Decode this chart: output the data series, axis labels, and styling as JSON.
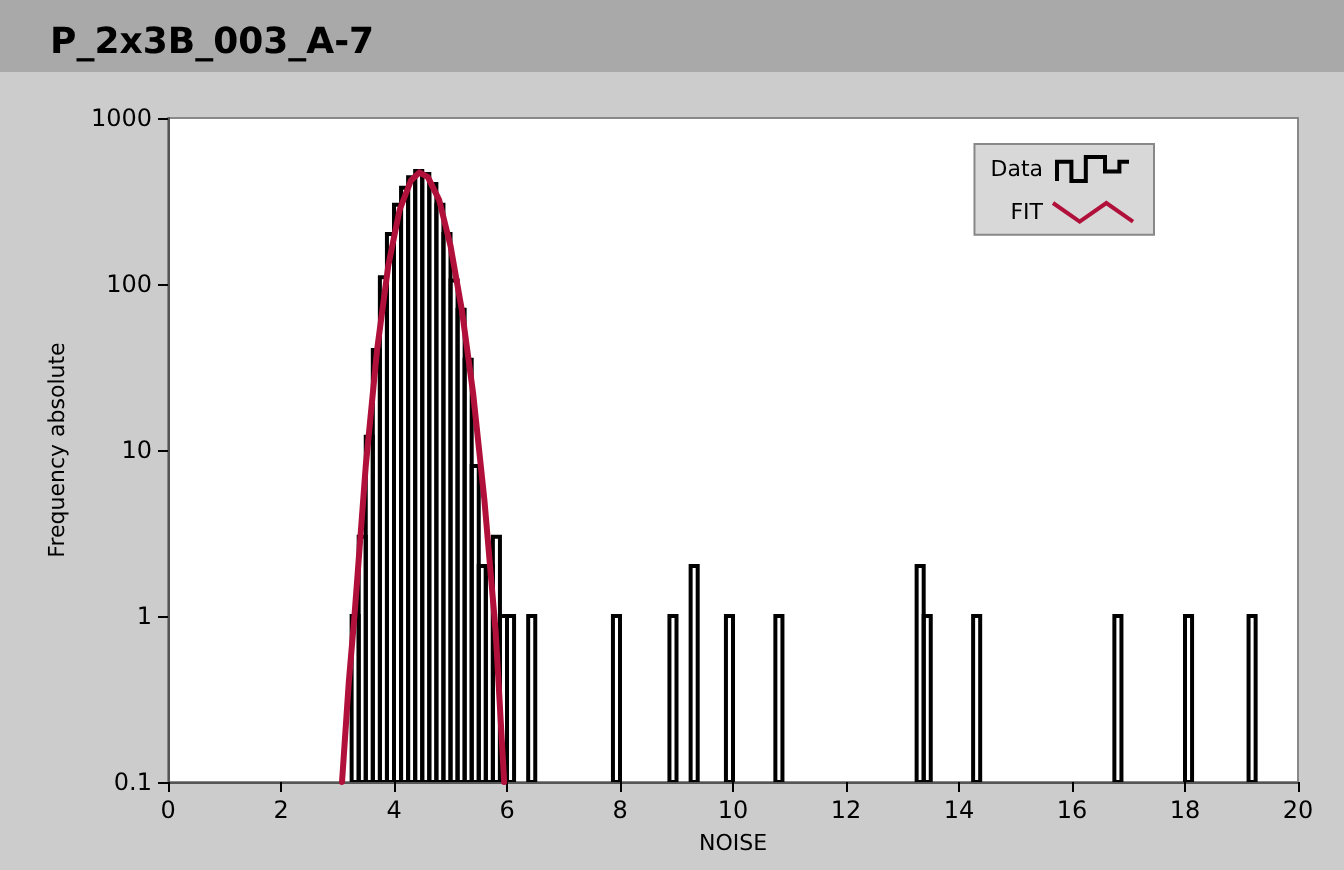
{
  "chart_data": {
    "type": "histogram",
    "title": "P_2x3B_003_A-7",
    "xlabel": "NOISE",
    "ylabel": "Frequency absolute",
    "xlim": [
      0,
      20
    ],
    "xticks": [
      0,
      2,
      4,
      6,
      8,
      10,
      12,
      14,
      16,
      18,
      20
    ],
    "ylim": [
      0.1,
      1000
    ],
    "yticks": [
      0.1,
      1,
      10,
      100,
      1000
    ],
    "log": true,
    "grid": false,
    "legend": "top right",
    "series": [
      {
        "name": "Data",
        "color": "#000000",
        "bins": [
          3.25,
          3.375,
          3.5,
          3.625,
          3.75,
          3.875,
          4.0,
          4.125,
          4.25,
          4.375,
          4.5,
          4.625,
          4.75,
          4.875,
          5.0,
          5.125,
          5.25,
          5.375,
          5.5,
          5.625,
          5.75,
          5.875,
          6.0,
          6.125,
          6.375,
          6.5,
          7.875,
          8.0,
          8.875,
          9.0,
          9.25,
          9.375,
          9.875,
          10.0,
          10.75,
          10.875,
          13.25,
          13.375,
          13.5,
          14.25,
          14.375,
          16.75,
          16.875,
          18.0,
          18.125,
          19.125,
          19.25
        ],
        "values": [
          1,
          3,
          12,
          40,
          110,
          200,
          300,
          380,
          440,
          480,
          460,
          400,
          300,
          200,
          105,
          70,
          35,
          8,
          2,
          2,
          3,
          1,
          1,
          null,
          1,
          null,
          1,
          null,
          1,
          null,
          2,
          null,
          1,
          null,
          1,
          null,
          2,
          1,
          null,
          1,
          null,
          1,
          null,
          1,
          null,
          1
        ]
      },
      {
        "name": "FIT",
        "type": "line",
        "color": "#b0103a",
        "marker": "none",
        "line_style": "solid",
        "x": [
          3.08,
          3.2,
          3.3,
          3.5,
          3.7,
          3.9,
          4.1,
          4.3,
          4.45,
          4.6,
          4.8,
          5.0,
          5.2,
          5.4,
          5.6,
          5.8,
          5.95
        ],
        "values": [
          0.1,
          0.4,
          1,
          8,
          40,
          130,
          280,
          420,
          470,
          440,
          320,
          170,
          70,
          22,
          5,
          0.8,
          0.1
        ]
      }
    ]
  }
}
